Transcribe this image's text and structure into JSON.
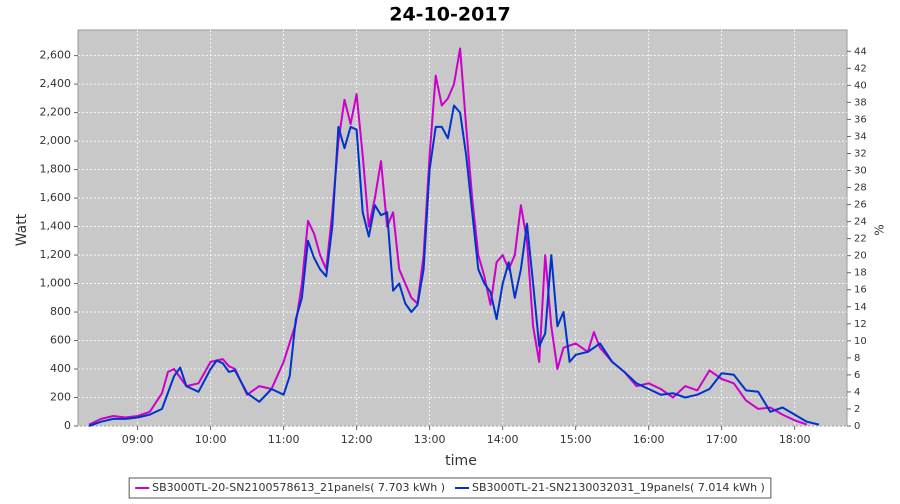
{
  "chart_data": {
    "type": "line",
    "title": "24-10-2017",
    "x_label": "time",
    "y_label": "Watt",
    "y2_label": "%",
    "xlim": [
      "08:11",
      "18:43"
    ],
    "xticks": [
      "09:00",
      "10:00",
      "11:00",
      "12:00",
      "13:00",
      "14:00",
      "15:00",
      "16:00",
      "17:00",
      "18:00"
    ],
    "ylim": [
      0,
      2780
    ],
    "yticks": [
      0,
      200,
      400,
      600,
      800,
      {
        "value": 1000,
        "label": "1,000"
      },
      {
        "value": 1200,
        "label": "1,200"
      },
      {
        "value": 1400,
        "label": "1,400"
      },
      {
        "value": 1600,
        "label": "1,600"
      },
      {
        "value": 1800,
        "label": "1,800"
      },
      {
        "value": 2000,
        "label": "2,000"
      },
      {
        "value": 2200,
        "label": "2,200"
      },
      {
        "value": 2400,
        "label": "2,400"
      },
      {
        "value": 2600,
        "label": "2,600"
      }
    ],
    "y2lim": [
      0,
      46.5
    ],
    "y2ticks": [
      0,
      2,
      4,
      6,
      8,
      10,
      12,
      14,
      16,
      18,
      20,
      22,
      24,
      26,
      28,
      30,
      32,
      34,
      36,
      38,
      40,
      42,
      44
    ],
    "grid": true,
    "legend": "bottom",
    "series": [
      {
        "name": "SB3000TL-20-SN2100578613_21panels( 7.703 kWh )",
        "color": "#cc00cc",
        "x": [
          "08:20",
          "08:30",
          "08:40",
          "08:50",
          "09:00",
          "09:10",
          "09:20",
          "09:25",
          "09:30",
          "09:40",
          "09:50",
          "10:00",
          "10:10",
          "10:15",
          "10:20",
          "10:30",
          "10:40",
          "10:50",
          "11:00",
          "11:10",
          "11:15",
          "11:20",
          "11:25",
          "11:30",
          "11:35",
          "11:40",
          "11:45",
          "11:50",
          "11:55",
          "12:00",
          "12:05",
          "12:10",
          "12:15",
          "12:20",
          "12:25",
          "12:30",
          "12:35",
          "12:40",
          "12:45",
          "12:50",
          "12:55",
          "13:00",
          "13:05",
          "13:10",
          "13:15",
          "13:20",
          "13:25",
          "13:30",
          "13:35",
          "13:40",
          "13:45",
          "13:50",
          "13:55",
          "14:00",
          "14:05",
          "14:10",
          "14:15",
          "14:20",
          "14:25",
          "14:30",
          "14:35",
          "14:40",
          "14:45",
          "14:50",
          "15:00",
          "15:10",
          "15:15",
          "15:20",
          "15:30",
          "15:40",
          "15:50",
          "16:00",
          "16:10",
          "16:20",
          "16:30",
          "16:40",
          "16:50",
          "17:00",
          "17:10",
          "17:20",
          "17:30",
          "17:40",
          "17:50",
          "18:00",
          "18:10"
        ],
        "values": [
          10,
          50,
          70,
          60,
          70,
          100,
          230,
          380,
          400,
          280,
          300,
          450,
          470,
          420,
          400,
          220,
          280,
          260,
          450,
          720,
          1000,
          1440,
          1350,
          1200,
          1100,
          1500,
          2000,
          2290,
          2120,
          2330,
          1900,
          1400,
          1600,
          1860,
          1400,
          1500,
          1100,
          1000,
          900,
          860,
          1200,
          1900,
          2460,
          2250,
          2300,
          2400,
          2650,
          2100,
          1600,
          1200,
          1050,
          850,
          1150,
          1200,
          1100,
          1200,
          1550,
          1300,
          700,
          450,
          1200,
          700,
          400,
          550,
          580,
          520,
          660,
          550,
          450,
          380,
          280,
          300,
          260,
          200,
          280,
          250,
          390,
          330,
          300,
          180,
          120,
          130,
          80,
          40,
          10
        ]
      },
      {
        "name": "SB3000TL-21-SN2130032031_19panels( 7.014 kWh )",
        "color": "#0033cc",
        "x": [
          "08:20",
          "08:30",
          "08:40",
          "08:50",
          "09:00",
          "09:10",
          "09:20",
          "09:30",
          "09:35",
          "09:40",
          "09:50",
          "10:00",
          "10:05",
          "10:10",
          "10:15",
          "10:20",
          "10:30",
          "10:40",
          "10:50",
          "11:00",
          "11:05",
          "11:10",
          "11:15",
          "11:20",
          "11:25",
          "11:30",
          "11:35",
          "11:40",
          "11:45",
          "11:50",
          "11:55",
          "12:00",
          "12:05",
          "12:10",
          "12:15",
          "12:20",
          "12:25",
          "12:30",
          "12:35",
          "12:40",
          "12:45",
          "12:50",
          "12:55",
          "13:00",
          "13:05",
          "13:10",
          "13:15",
          "13:20",
          "13:25",
          "13:30",
          "13:35",
          "13:40",
          "13:45",
          "13:50",
          "13:55",
          "14:00",
          "14:05",
          "14:10",
          "14:15",
          "14:20",
          "14:25",
          "14:30",
          "14:35",
          "14:40",
          "14:45",
          "14:50",
          "14:55",
          "15:00",
          "15:10",
          "15:20",
          "15:30",
          "15:40",
          "15:50",
          "16:00",
          "16:10",
          "16:20",
          "16:30",
          "16:40",
          "16:50",
          "17:00",
          "17:10",
          "17:20",
          "17:30",
          "17:40",
          "17:50",
          "18:00",
          "18:10",
          "18:20"
        ],
        "values": [
          0,
          30,
          50,
          50,
          60,
          80,
          120,
          350,
          410,
          280,
          240,
          400,
          460,
          440,
          380,
          390,
          230,
          170,
          260,
          220,
          350,
          750,
          900,
          1300,
          1180,
          1100,
          1050,
          1400,
          2100,
          1950,
          2100,
          2080,
          1500,
          1330,
          1550,
          1480,
          1500,
          950,
          1000,
          860,
          800,
          850,
          1100,
          1800,
          2100,
          2100,
          2020,
          2250,
          2200,
          1900,
          1500,
          1100,
          1000,
          940,
          750,
          1000,
          1150,
          900,
          1100,
          1420,
          1000,
          560,
          650,
          1200,
          700,
          800,
          450,
          500,
          520,
          580,
          450,
          380,
          300,
          260,
          220,
          230,
          200,
          220,
          260,
          370,
          360,
          250,
          240,
          100,
          130,
          80,
          30,
          10
        ]
      }
    ]
  }
}
